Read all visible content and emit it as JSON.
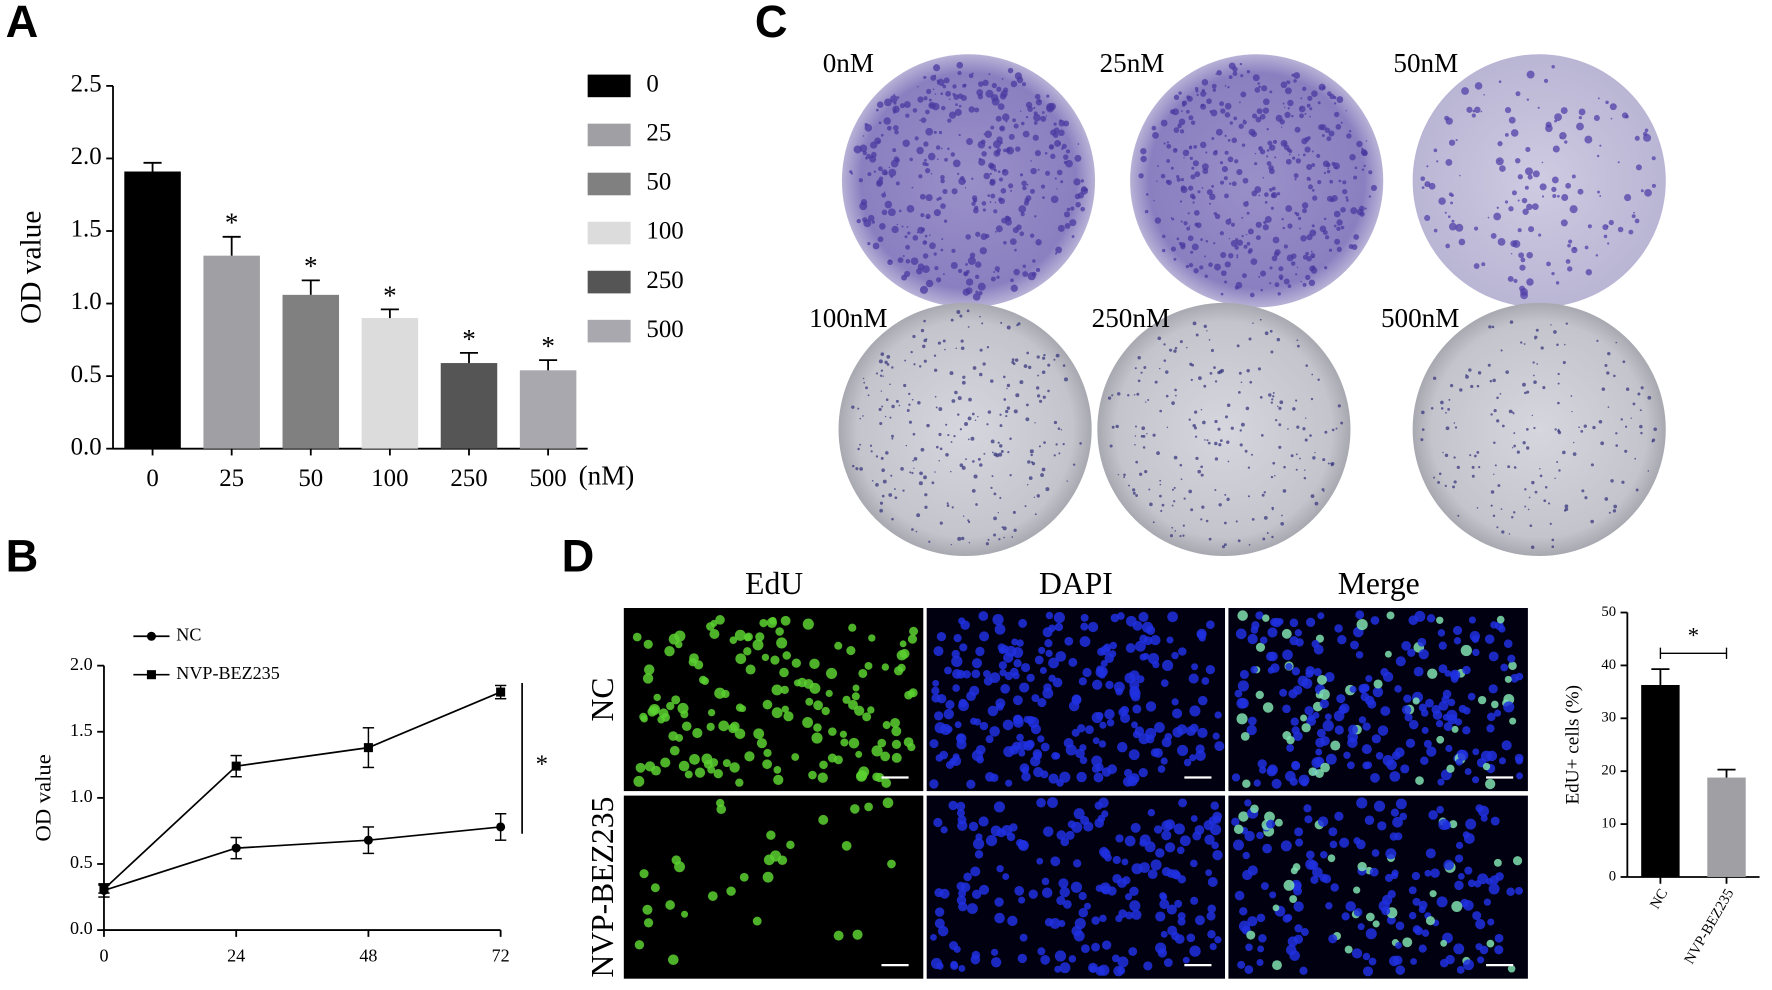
{
  "panel_labels": [
    "A",
    "B",
    "C",
    "D"
  ],
  "plate_labels": [
    "0nM",
    "25nM",
    "50nM",
    "100nM",
    "250nM",
    "500nM"
  ],
  "micrograph": {
    "columns": [
      "EdU",
      "DAPI",
      "Merge"
    ],
    "rows": [
      "NC",
      "NVP-BEZ235"
    ]
  },
  "chart_data": [
    {
      "type": "bar",
      "y_label": "OD value",
      "x_unit": "(nM)",
      "categories": [
        "0",
        "25",
        "50",
        "100",
        "250",
        "500"
      ],
      "values": [
        1.91,
        1.33,
        1.06,
        0.9,
        0.59,
        0.54
      ],
      "errors": [
        0.06,
        0.13,
        0.1,
        0.06,
        0.07,
        0.07
      ],
      "colors": [
        "#000000",
        "#a0a0a4",
        "#808080",
        "#dcdcdc",
        "#555555",
        "#a8a8ae"
      ],
      "significance": [
        null,
        "*",
        "*",
        "*",
        "*",
        "*"
      ],
      "ylim": [
        0,
        2.5
      ],
      "yticks": [
        {
          "value": 0,
          "label": "0.0"
        },
        {
          "value": 0.5,
          "label": "0.5"
        },
        {
          "value": 1,
          "label": "1.0"
        },
        {
          "value": 1.5,
          "label": "1.5"
        },
        {
          "value": 2,
          "label": "2.0"
        },
        {
          "value": 2.5,
          "label": "2.5"
        }
      ],
      "legend": true
    },
    {
      "type": "line",
      "y_label": "OD value",
      "x": [
        0,
        24,
        48,
        72
      ],
      "xlim": [
        0,
        72
      ],
      "xticks": [
        0,
        24,
        48,
        72
      ],
      "series": [
        {
          "name": "NC",
          "color": "#000000",
          "marker": "circle",
          "values": [
            0.3,
            0.62,
            0.68,
            0.78
          ],
          "errors": [
            0.05,
            0.08,
            0.1,
            0.1
          ]
        },
        {
          "name": "NVP-BEZ235",
          "color": "#000000",
          "marker": "square",
          "values": [
            0.31,
            1.24,
            1.38,
            1.8
          ],
          "errors": [
            0.03,
            0.08,
            0.15,
            0.05
          ]
        }
      ],
      "significance": "*",
      "ylim": [
        0,
        2.0
      ],
      "yticks": [
        {
          "value": 0,
          "label": "0.0"
        },
        {
          "value": 0.5,
          "label": "0.5"
        },
        {
          "value": 1,
          "label": "1.0"
        },
        {
          "value": 1.5,
          "label": "1.5"
        },
        {
          "value": 2,
          "label": "2.0"
        }
      ]
    },
    {
      "type": "bar",
      "y_label": "EdU+ cells (%)",
      "categories": [
        "NC",
        "NVP-BEZ235"
      ],
      "values": [
        36.3,
        18.8
      ],
      "errors": [
        3.0,
        1.5
      ],
      "colors": [
        "#000000",
        "#a0a0a4"
      ],
      "significance": "*",
      "ylim": [
        0,
        50
      ],
      "yticks": [
        0,
        10,
        20,
        30,
        40,
        50
      ]
    }
  ]
}
